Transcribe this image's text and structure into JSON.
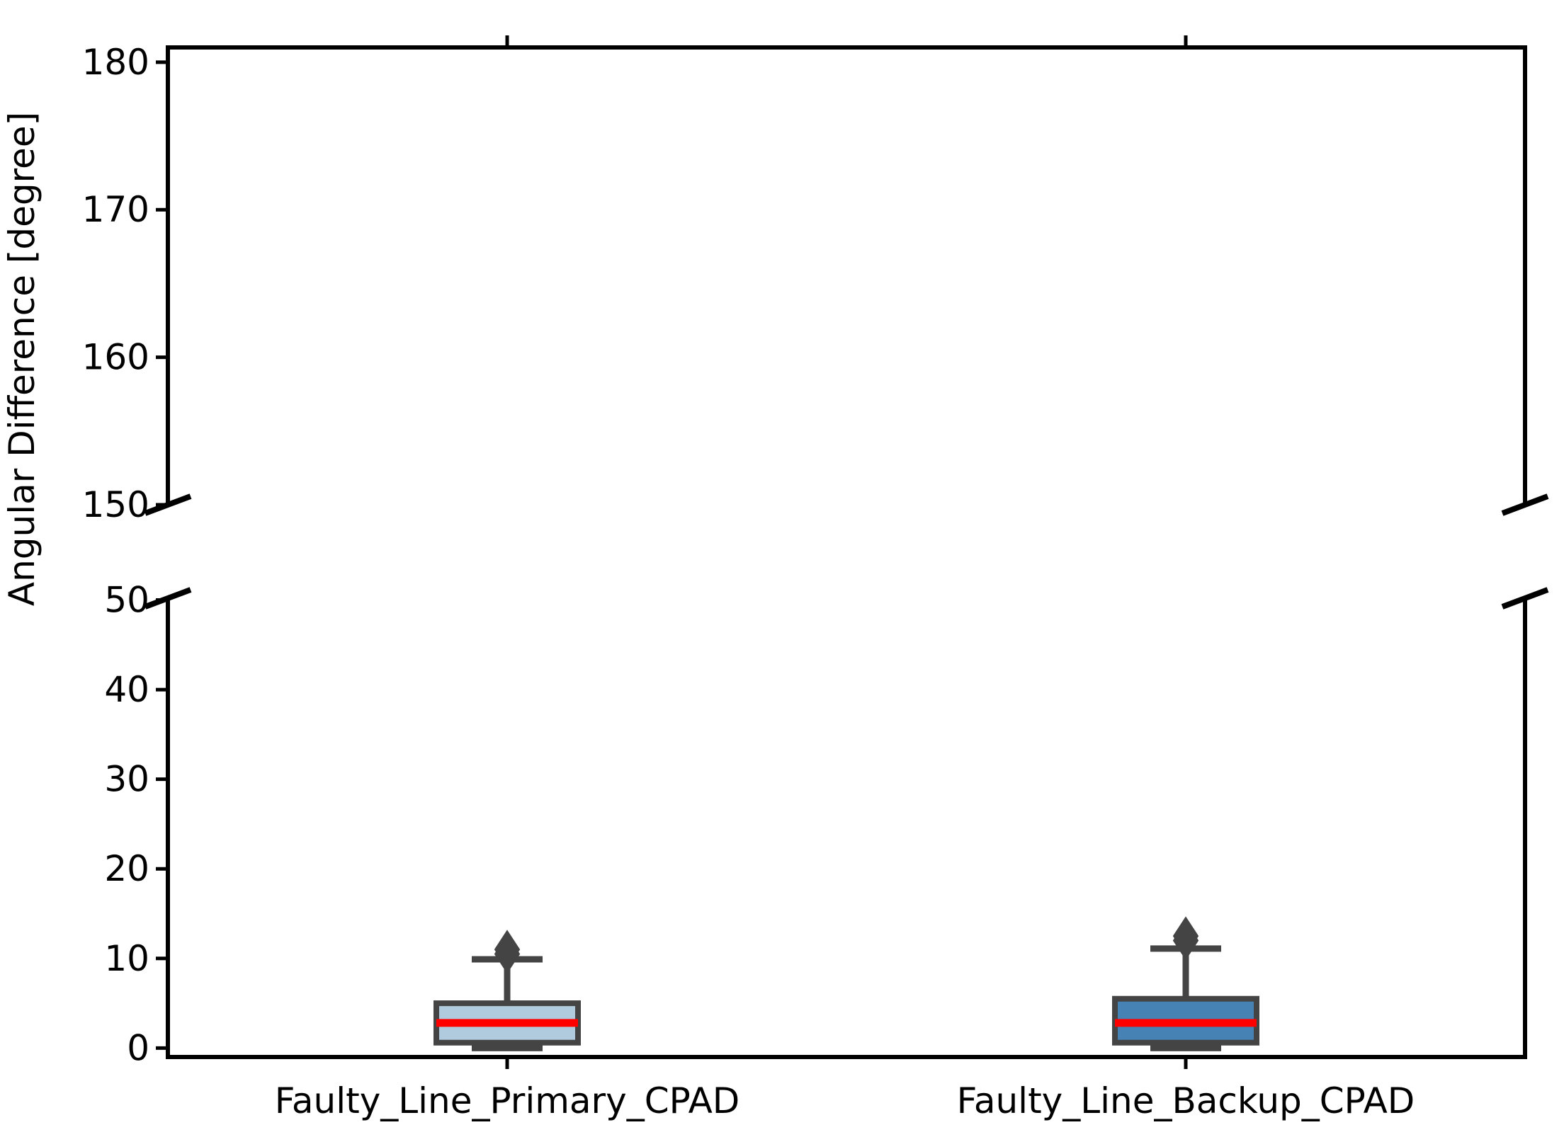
{
  "chart_data": {
    "type": "boxplot",
    "title": "",
    "ylabel": "Angular Difference [degree]",
    "xlabel": "",
    "categories": [
      "Faulty_Line_Primary_CPAD",
      "Faulty_Line_Backup_CPAD"
    ],
    "grid": false,
    "legend": "none",
    "broken_axis": {
      "top_panel": {
        "ylim": [
          150,
          181
        ],
        "yticks": [
          150,
          160,
          170,
          180
        ]
      },
      "bottom_panel": {
        "ylim": [
          -1,
          50.2
        ],
        "yticks": [
          0,
          10,
          20,
          30,
          40,
          50
        ]
      }
    },
    "series": [
      {
        "name": "Faulty_Line_Primary_CPAD",
        "whisker_low": 0.0,
        "q1": 0.6,
        "median": 2.8,
        "q3": 5.0,
        "whisker_high": 9.9,
        "fliers": [
          10.5,
          11.0
        ],
        "box_fill": "#afcbdd"
      },
      {
        "name": "Faulty_Line_Backup_CPAD",
        "whisker_low": 0.0,
        "q1": 0.6,
        "median": 2.8,
        "q3": 5.5,
        "whisker_high": 11.1,
        "fliers": [
          12.0,
          12.5
        ],
        "box_fill": "#4682b4"
      }
    ],
    "colors": {
      "background": "#ffffff",
      "median": "#ff0000",
      "box_edge": "#444444",
      "whisker": "#444444",
      "flier": "#444444",
      "axis": "#000000"
    }
  }
}
